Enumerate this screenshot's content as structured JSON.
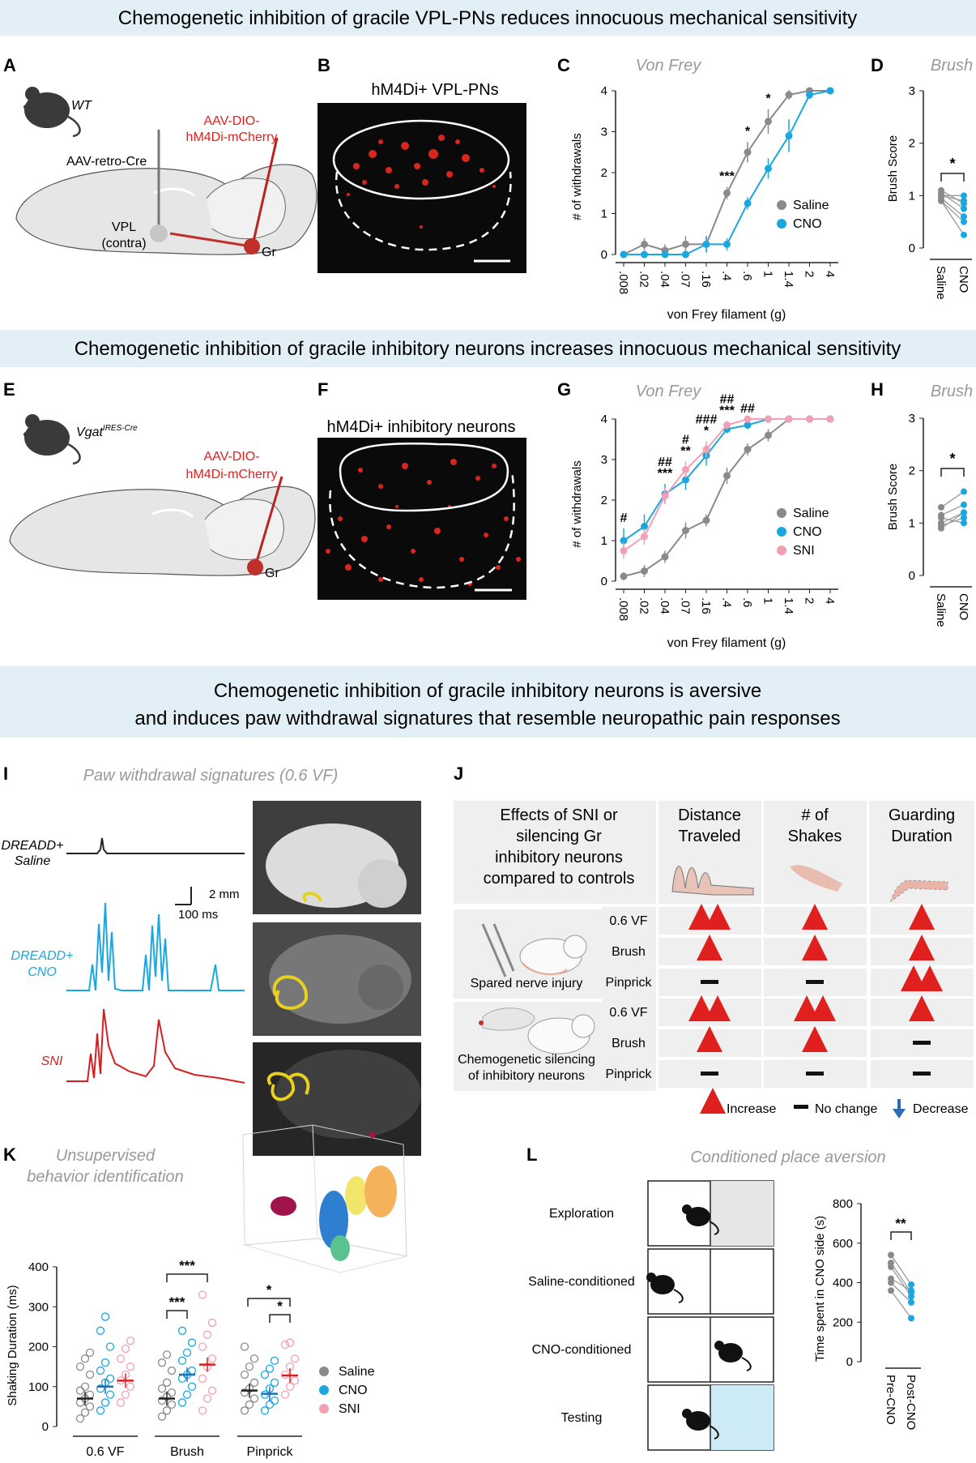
{
  "sections": {
    "top": "Chemogenetic inhibition of gracile VPL-PNs reduces innocuous mechanical sensitivity",
    "mid": "Chemogenetic inhibition of gracile inhibitory neurons increases innocuous mechanical sensitivity",
    "bottom_l1": "Chemogenetic inhibition of gracile inhibitory neurons is aversive",
    "bottom_l2": "and induces paw withdrawal signatures that resemble neuropathic pain responses"
  },
  "panelA": {
    "letter": "A",
    "mouse": "WT",
    "retro": "AAV-retro-Cre",
    "dio1": "AAV-DIO-",
    "dio2": "hM4Di-mCherry",
    "vpl1": "VPL",
    "vpl2": "(contra)",
    "gr": "Gr"
  },
  "panelB": {
    "letter": "B",
    "title": "hM4Di+ VPL-PNs"
  },
  "panelC": {
    "letter": "C",
    "title": "Von Frey",
    "ylabel": "# of withdrawals",
    "xlabel": "von Frey filament (g)",
    "yticks": [
      "0",
      "1",
      "2",
      "3",
      "4"
    ],
    "xticks": [
      ".008",
      ".02",
      ".04",
      ".07",
      ".16",
      ".4",
      ".6",
      "1",
      "1.4",
      "2",
      "4"
    ],
    "sig": [
      {
        "i": 5,
        "t": "***"
      },
      {
        "i": 6,
        "t": "*"
      },
      {
        "i": 7,
        "t": "*"
      }
    ],
    "legend": [
      "Saline",
      "CNO"
    ]
  },
  "panelD": {
    "letter": "D",
    "title": "Brush",
    "ylabel": "Brush Score",
    "yticks": [
      "0",
      "1",
      "2",
      "3"
    ],
    "cats": [
      "Saline",
      "CNO"
    ],
    "sig": "*"
  },
  "panelE": {
    "letter": "E",
    "mouse": "Vgat",
    "mouse_sup": "IRES-Cre",
    "dio1": "AAV-DIO-",
    "dio2": "hM4Di-mCherry",
    "gr": "Gr"
  },
  "panelF": {
    "letter": "F",
    "title": "hM4Di+ inhibitory neurons"
  },
  "panelG": {
    "letter": "G",
    "title": "Von Frey",
    "ylabel": "# of withdrawals",
    "xlabel": "von Frey filament (g)",
    "yticks": [
      "0",
      "1",
      "2",
      "3",
      "4"
    ],
    "xticks": [
      ".008",
      ".02",
      ".04",
      ".07",
      ".16",
      ".4",
      ".6",
      "1",
      "1.4",
      "2",
      "4"
    ],
    "sig": [
      {
        "i": 0,
        "t": "#"
      },
      {
        "i": 2,
        "t": "***"
      },
      {
        "i": 2,
        "t": "##"
      },
      {
        "i": 3,
        "t": "**"
      },
      {
        "i": 3,
        "t": "#"
      },
      {
        "i": 4,
        "t": "*"
      },
      {
        "i": 4,
        "t": "###"
      },
      {
        "i": 5,
        "t": "***"
      },
      {
        "i": 5,
        "t": "##"
      },
      {
        "i": 6,
        "t": "##"
      }
    ],
    "legend": [
      "Saline",
      "CNO",
      "SNI"
    ]
  },
  "panelH": {
    "letter": "H",
    "title": "Brush",
    "ylabel": "Brush Score",
    "yticks": [
      "0",
      "1",
      "2",
      "3"
    ],
    "cats": [
      "Saline",
      "CNO"
    ],
    "sig": "*"
  },
  "panelI": {
    "letter": "I",
    "title": "Paw withdrawal signatures (0.6 VF)",
    "trace1a": "DREADD+",
    "trace1b": "Saline",
    "trace2a": "DREADD+",
    "trace2b": "CNO",
    "trace3": "SNI",
    "scale_y": "2 mm",
    "scale_x": "100 ms"
  },
  "panelJ": {
    "letter": "J",
    "head": [
      "Effects of SNI or",
      "silencing Gr",
      "inhibitory neurons",
      "compared to controls"
    ],
    "cols": [
      [
        "Distance",
        "Traveled"
      ],
      [
        "# of",
        "Shakes"
      ],
      [
        "Guarding",
        "Duration"
      ]
    ],
    "group1": "Spared nerve injury",
    "group2a": "Chemogenetic silencing",
    "group2b": "of inhibitory neurons",
    "stim": [
      "0.6 VF",
      "Brush",
      "Pinprick",
      "0.6 VF",
      "Brush",
      "Pinprick"
    ],
    "cells": [
      [
        "up2",
        "up1",
        "up1"
      ],
      [
        "up1",
        "up1",
        "up1"
      ],
      [
        "none",
        "none",
        "up2"
      ],
      [
        "up2",
        "up2",
        "up1"
      ],
      [
        "up1",
        "up1",
        "none"
      ],
      [
        "none",
        "none",
        "none"
      ]
    ],
    "legend": [
      "Increase",
      "No change",
      "Decrease"
    ]
  },
  "panelK": {
    "letter": "K",
    "title1": "Unsupervised",
    "title2": "behavior identification",
    "ylabel": "Shaking Duration (ms)",
    "yticks": [
      "0",
      "100",
      "200",
      "300",
      "400"
    ],
    "groups": [
      "0.6 VF",
      "Brush",
      "Pinprick"
    ],
    "means": [
      [
        70,
        100,
        115
      ],
      [
        70,
        130,
        155
      ],
      [
        90,
        82,
        128
      ]
    ],
    "sig": [
      "***",
      "***",
      "*",
      "*"
    ],
    "legend": [
      "Saline",
      "CNO",
      "SNI"
    ]
  },
  "panelL": {
    "letter": "L",
    "title": "Conditioned place aversion",
    "rows": [
      "Exploration",
      "Saline-conditioned",
      "CNO-conditioned",
      "Testing"
    ],
    "ylabel": "Time spent in CNO side (s)",
    "yticks": [
      "0",
      "200",
      "400",
      "600",
      "800"
    ],
    "cats": [
      "Pre-CNO",
      "Post-CNO"
    ],
    "sig": "**"
  },
  "colors": {
    "saline": "#8a8a8a",
    "cno": "#1aa7e0",
    "sni": "#f2a0b4",
    "red": "#e0201e",
    "band": "#e3eff6"
  }
}
